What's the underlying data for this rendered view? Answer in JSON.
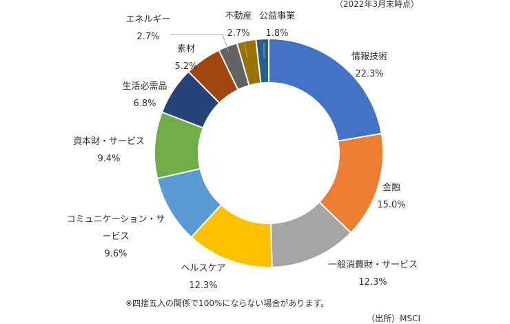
{
  "chart_data": {
    "type": "pie",
    "subtitle": "（2022年3月末時点）",
    "categories": [
      "情報技術",
      "金融",
      "一般消費財・サービス",
      "ヘルスケア",
      "コミュニケーション・サービス",
      "資本財・サービス",
      "生活必需品",
      "素材",
      "エネルギー",
      "不動産",
      "公益事業"
    ],
    "values": [
      22.3,
      15.0,
      12.3,
      12.3,
      9.6,
      9.4,
      6.8,
      5.2,
      2.7,
      2.7,
      1.8
    ],
    "value_labels": [
      "22.3%",
      "15.0%",
      "12.3%",
      "12.3%",
      "9.6%",
      "9.4%",
      "6.8%",
      "5.2%",
      "2.7%",
      "2.7%",
      "1.8%"
    ],
    "colors": [
      "#4472C4",
      "#ED7D31",
      "#A5A5A5",
      "#FFC000",
      "#5B9BD5",
      "#70AD47",
      "#264478",
      "#9E480E",
      "#636363",
      "#997300",
      "#255E91"
    ],
    "style": "donut",
    "footnote": "※四捨五入の関係で100%にならない場合があります。",
    "source": "（出所）MSCI"
  }
}
